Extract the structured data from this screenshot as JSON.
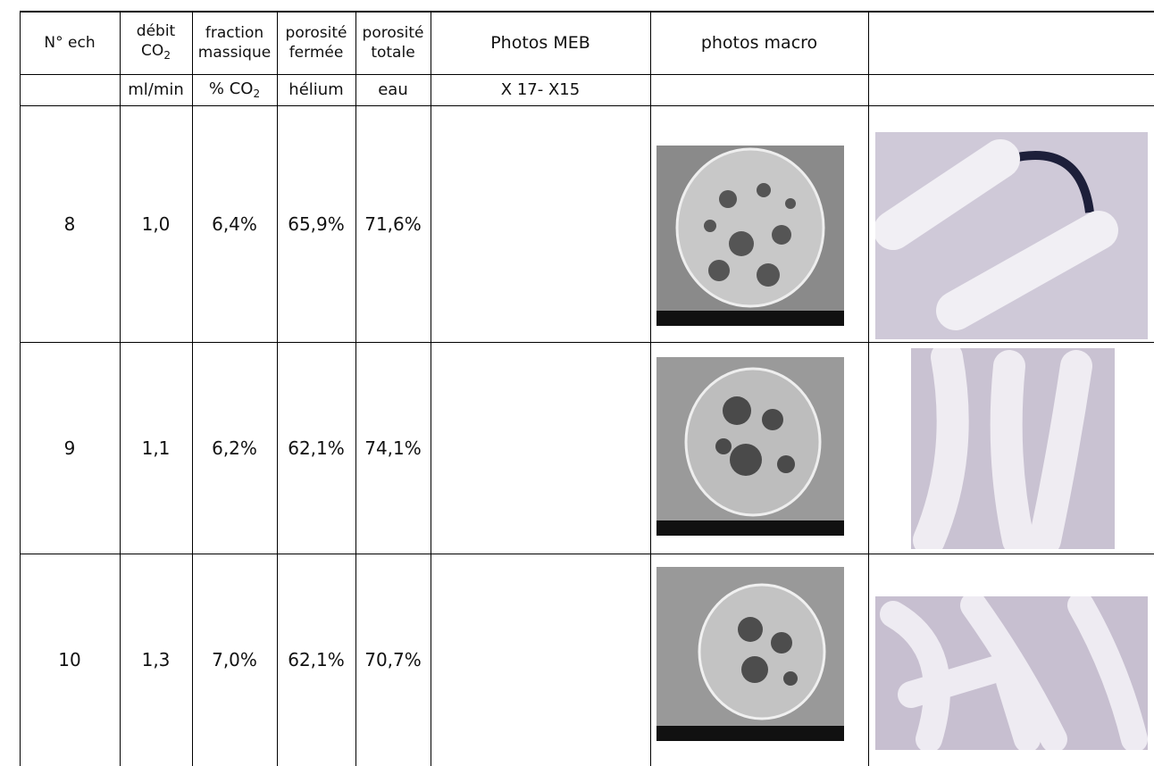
{
  "table": {
    "header": [
      {
        "lines": [
          "N° ech"
        ]
      },
      {
        "lines": [
          "débit",
          "CO"
        ],
        "sub": "2"
      },
      {
        "lines": [
          "fraction",
          "massique"
        ]
      },
      {
        "lines": [
          "porosité",
          "fermée"
        ]
      },
      {
        "lines": [
          "porosité",
          "totale"
        ]
      },
      {
        "lines": [
          "Photos MEB"
        ]
      },
      {
        "lines": [
          "photos macro"
        ]
      }
    ],
    "units": [
      {
        "text": "ml/min"
      },
      {
        "text": "% CO",
        "sub": "2"
      },
      {
        "text": "hélium"
      },
      {
        "text": "eau"
      },
      {
        "text": "X 17- X15"
      }
    ],
    "rows": [
      [
        "8",
        "1,0",
        "6,4%",
        "65,9%",
        "71,6%"
      ],
      [
        "9",
        "1,1",
        "6,2%",
        "62,1%",
        "74,1%"
      ],
      [
        "10",
        "1,3",
        "7,0%",
        "62,1%",
        "70,7%"
      ]
    ]
  }
}
